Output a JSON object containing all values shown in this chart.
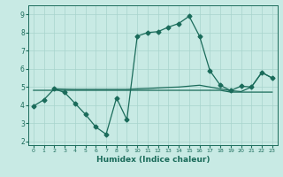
{
  "xlabel": "Humidex (Indice chaleur)",
  "xlim": [
    -0.5,
    23.5
  ],
  "ylim": [
    1.8,
    9.5
  ],
  "yticks": [
    2,
    3,
    4,
    5,
    6,
    7,
    8,
    9
  ],
  "xticks": [
    0,
    1,
    2,
    3,
    4,
    5,
    6,
    7,
    8,
    9,
    10,
    11,
    12,
    13,
    14,
    15,
    16,
    17,
    18,
    19,
    20,
    21,
    22,
    23
  ],
  "background_color": "#c8eae4",
  "grid_color": "#a8d4cc",
  "line_color": "#1a6b5a",
  "line1_x": [
    0,
    1,
    2,
    3,
    4,
    5,
    6,
    7,
    8,
    9,
    10,
    11,
    12,
    13,
    14,
    15,
    16,
    17,
    18,
    19,
    20,
    21,
    22,
    23
  ],
  "line1_y": [
    3.95,
    4.3,
    4.9,
    4.7,
    4.1,
    3.5,
    2.8,
    2.4,
    4.4,
    3.2,
    7.8,
    8.0,
    8.05,
    8.3,
    8.5,
    8.9,
    7.8,
    5.9,
    5.1,
    4.8,
    5.05,
    5.0,
    5.8,
    5.5
  ],
  "line2_x": [
    0,
    1,
    2,
    3,
    4,
    5,
    6,
    7,
    8,
    9,
    10,
    11,
    12,
    13,
    14,
    15,
    16,
    17,
    18,
    19,
    20,
    21,
    22,
    23
  ],
  "line2_y": [
    4.82,
    4.82,
    4.82,
    4.82,
    4.82,
    4.82,
    4.82,
    4.82,
    4.82,
    4.82,
    4.82,
    4.82,
    4.82,
    4.82,
    4.82,
    4.82,
    4.82,
    4.82,
    4.82,
    4.72,
    4.72,
    4.72,
    4.72,
    4.72
  ],
  "line3_x": [
    2,
    3,
    4,
    5,
    6,
    7,
    8,
    9,
    10,
    11,
    12,
    13,
    14,
    15,
    16,
    17,
    18,
    19,
    20,
    21,
    22,
    23
  ],
  "line3_y": [
    4.9,
    4.88,
    4.87,
    4.87,
    4.87,
    4.87,
    4.87,
    4.87,
    4.9,
    4.92,
    4.95,
    4.98,
    5.0,
    5.05,
    5.1,
    5.0,
    4.9,
    4.8,
    4.75,
    5.0,
    5.8,
    5.5
  ],
  "marker": "D",
  "markersize": 2.5,
  "linewidth": 0.9
}
